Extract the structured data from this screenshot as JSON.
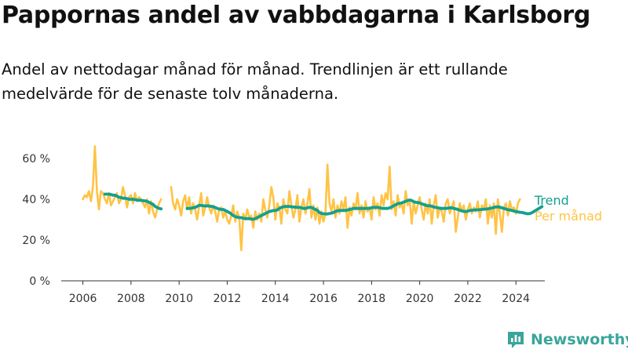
{
  "brand": {
    "name": "Newsworthy",
    "color": "#3aa59a",
    "icon": "bar-chart-icon"
  },
  "chart_data": {
    "type": "line",
    "title": "Pappornas andel av vabbdagarna i Karlsborg",
    "subtitle": "Andel av nettodagar månad för månad. Trendlinjen är ett rullande medelvärde för de senaste tolv månaderna.",
    "xlabel": "",
    "ylabel": "",
    "x_start": "2006-01",
    "xlim": [
      2005.1,
      2025.2
    ],
    "ylim": [
      0,
      70
    ],
    "x_ticks": [
      2006,
      2008,
      2010,
      2012,
      2014,
      2016,
      2018,
      2020,
      2022,
      2024
    ],
    "x_tick_labels": [
      "2006",
      "2008",
      "2010",
      "2012",
      "2014",
      "2016",
      "2018",
      "2020",
      "2022",
      "2024"
    ],
    "y_ticks": [
      0,
      20,
      40,
      60
    ],
    "y_tick_labels": [
      "0 %",
      "20 %",
      "40 %",
      "60 %"
    ],
    "grid": false,
    "legend_position": "right",
    "series": [
      {
        "name": "Per månad",
        "color": "#ffc344",
        "values": [
          40,
          42,
          41,
          44,
          39,
          46,
          66,
          44,
          35,
          44,
          43,
          40,
          38,
          43,
          37,
          39,
          41,
          43,
          38,
          40,
          46,
          42,
          36,
          41,
          42,
          38,
          43,
          39,
          41,
          40,
          38,
          36,
          40,
          33,
          39,
          34,
          31,
          35,
          38,
          40,
          null,
          null,
          null,
          null,
          46,
          38,
          35,
          40,
          37,
          32,
          39,
          42,
          35,
          41,
          33,
          38,
          35,
          30,
          37,
          43,
          32,
          36,
          41,
          36,
          33,
          37,
          34,
          29,
          35,
          36,
          31,
          34,
          30,
          28,
          32,
          37,
          29,
          34,
          31,
          15,
          33,
          30,
          35,
          31,
          32,
          26,
          34,
          30,
          33,
          29,
          40,
          35,
          31,
          37,
          46,
          41,
          30,
          38,
          36,
          28,
          40,
          35,
          33,
          44,
          37,
          31,
          35,
          42,
          29,
          36,
          40,
          33,
          38,
          45,
          31,
          37,
          30,
          36,
          28,
          34,
          29,
          33,
          57,
          38,
          34,
          40,
          31,
          37,
          33,
          39,
          35,
          41,
          26,
          36,
          32,
          38,
          35,
          43,
          33,
          37,
          31,
          39,
          34,
          36,
          30,
          41,
          35,
          38,
          32,
          42,
          37,
          43,
          40,
          56,
          35,
          39,
          32,
          42,
          36,
          38,
          33,
          44,
          37,
          40,
          28,
          39,
          33,
          37,
          41,
          35,
          30,
          38,
          33,
          40,
          28,
          37,
          42,
          31,
          36,
          34,
          29,
          38,
          40,
          33,
          36,
          39,
          24,
          31,
          38,
          34,
          37,
          30,
          35,
          38,
          33,
          36,
          34,
          39,
          31,
          37,
          35,
          40,
          28,
          37,
          31,
          38,
          23,
          40,
          33,
          24,
          36,
          38,
          32,
          39,
          35,
          36,
          33,
          38,
          40
        ]
      },
      {
        "name": "Trend",
        "color": "#13a08f",
        "values": [
          null,
          null,
          null,
          null,
          null,
          null,
          null,
          null,
          null,
          null,
          null,
          42.5,
          42.5,
          42.5,
          42.3,
          42,
          42,
          41.5,
          41,
          40.8,
          40.5,
          40.5,
          40.3,
          40,
          40,
          40,
          39.8,
          39.6,
          39.5,
          39.5,
          39.3,
          39.2,
          39,
          38.5,
          38,
          37.5,
          36.5,
          36,
          35.5,
          35.3,
          null,
          null,
          null,
          null,
          null,
          null,
          null,
          null,
          null,
          null,
          null,
          null,
          35.5,
          35.5,
          35.6,
          35.8,
          36,
          36.5,
          37,
          37,
          36.8,
          36.7,
          36.8,
          36.7,
          36.5,
          36.3,
          36,
          35.5,
          35.2,
          35,
          35,
          34.5,
          34,
          33.5,
          32.8,
          32,
          31.5,
          31.2,
          31,
          31,
          30.7,
          30.5,
          30.5,
          30.5,
          30.3,
          30.2,
          30.5,
          31,
          31.5,
          32,
          32.5,
          33,
          33.5,
          34,
          34.2,
          34.5,
          34.5,
          34.8,
          35.5,
          36,
          36.3,
          36.5,
          36.5,
          36.5,
          36.3,
          36.2,
          36.1,
          36,
          36,
          35.8,
          35.5,
          35.5,
          35.8,
          36,
          36,
          35.5,
          35,
          34.5,
          33.5,
          33,
          32.9,
          32.8,
          32.8,
          33,
          33.2,
          33.5,
          34,
          34.3,
          34.5,
          34.5,
          34.5,
          34.5,
          34.7,
          35,
          35.2,
          35.5,
          35.5,
          35.5,
          35.5,
          35.5,
          35.5,
          35.5,
          35.5,
          35.6,
          35.8,
          36,
          36,
          36,
          35.8,
          35.6,
          35.5,
          35.5,
          35.5,
          35.8,
          36.2,
          36.8,
          37.3,
          37.8,
          38,
          38.2,
          38.6,
          39,
          39.4,
          39.6,
          39.4,
          38.8,
          38.5,
          38.4,
          38.2,
          37.8,
          37.4,
          37,
          36.8,
          36.8,
          36.6,
          36.2,
          36,
          35.8,
          35.6,
          35.5,
          35.5,
          35.5,
          35.6,
          35.8,
          35.8,
          35.5,
          35.3,
          35,
          34.6,
          34.3,
          34,
          34,
          34.2,
          34.5,
          34.6,
          34.7,
          34.8,
          34.8,
          34.9,
          35,
          35.1,
          35.2,
          35.3,
          35.5,
          35.7,
          36,
          36.2,
          36.3,
          36.1,
          35.8,
          35.5,
          35.2,
          34.9,
          34.7,
          34.5,
          34.2,
          34,
          33.8,
          33.6,
          33.5,
          33.3,
          33,
          32.9,
          33,
          33.4,
          34,
          34.6,
          35.2,
          35.8,
          36.4
        ]
      }
    ]
  }
}
